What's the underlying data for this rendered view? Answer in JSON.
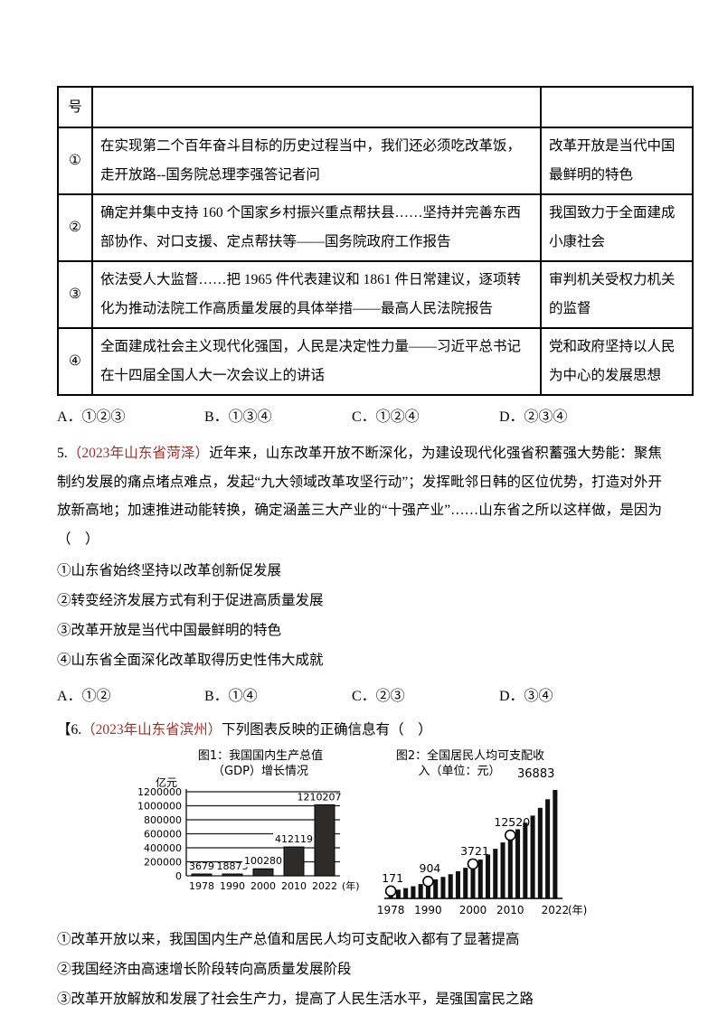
{
  "colors": {
    "source_red": "#97322d",
    "bar_dark": "#2e2c2a",
    "bar_black": "#111111"
  },
  "table": {
    "header_col1": "号",
    "rows": [
      {
        "num": "①",
        "content": "在实现第二个百年奋斗目标的历史过程当中，我们还必须吃改革饭，走开放路--国务院总理李强答记者问",
        "meaning": "改革开放是当代中国最鲜明的特色"
      },
      {
        "num": "②",
        "content": "确定并集中支持 160 个国家乡村振兴重点帮扶县……坚持并完善东西部协作、对口支援、定点帮扶等——国务院政府工作报告",
        "meaning": "我国致力于全面建成小康社会"
      },
      {
        "num": "③",
        "content": "依法受人大监督……把 1965 件代表建议和 1861 件日常建议，逐项转化为推动法院工作高质量发展的具体举措——最高人民法院报告",
        "meaning": "审判机关受权力机关的监督"
      },
      {
        "num": "④",
        "content": "全面建成社会主义现代化强国，人民是决定性力量——习近平总书记在十四届全国人大一次会议上的讲话",
        "meaning": "党和政府坚持以人民为中心的发展思想"
      }
    ]
  },
  "q4": {
    "options": [
      "A．①②③",
      "B．①③④",
      "C．①②④",
      "D．②③④"
    ]
  },
  "q5": {
    "number": "5.",
    "source": "（2023年山东省菏泽）",
    "text": "近年来，山东改革开放不断深化，为建设现代化强省积蓄强大势能：聚焦制约发展的痛点堵点难点，发起“九大领域改革攻坚行动”；发挥毗邻日韩的区位优势，打造对外开放新高地；加速推进动能转换，确定涵盖三大产业的“十强产业”……山东省之所以这样做，是因为（　）",
    "items": [
      "①山东省始终坚持以改革创新促发展",
      "②转变经济发展方式有利于促进高质量发展",
      "③改革开放是当代中国最鲜明的特色",
      "④山东省全面深化改革取得历史性伟大成就"
    ],
    "options": [
      "A．①②",
      "B．①④",
      "C．②③",
      "D．③④"
    ]
  },
  "q6": {
    "prefix": "【6.",
    "source": "（2023年山东省滨州）",
    "text": "下列图表反映的正确信息有（　）",
    "statements": [
      "①改革开放以来，我国国内生产总值和居民人均可支配收入都有了显著提高",
      "②我国经济由高速增长阶段转向高质量发展阶段",
      "③改革开放解放和发展了社会生产力，提高了人民生活水平，是强国富民之路"
    ]
  },
  "chart_data": [
    {
      "type": "bar",
      "title_lines": [
        "图1：我国国内生产总值",
        "（GDP）增长情况"
      ],
      "unit_label": "亿元",
      "categories": [
        "1978",
        "1990",
        "2000",
        "2010",
        "2022"
      ],
      "values": [
        3679,
        18873,
        100280,
        412119,
        1210207
      ],
      "data_labels": [
        "3679",
        "18873",
        "100280",
        "412119",
        "1210207"
      ],
      "ylim": [
        0,
        1200000
      ],
      "yticks": [
        0,
        200000,
        400000,
        600000,
        800000,
        1000000,
        1200000
      ],
      "x_axis_suffix": "(年)",
      "grid": true,
      "legend": "none"
    },
    {
      "type": "bar",
      "subtype": "dense-staircase",
      "title_lines": [
        "图2：全国居民人均可支配收",
        "入（单位：元）"
      ],
      "categories": [
        "1978",
        "1990",
        "2000",
        "2010",
        "2022"
      ],
      "values": [
        171,
        904,
        3721,
        12520,
        36883
      ],
      "data_labels": [
        "171",
        "904",
        "3721",
        "12520",
        "36883"
      ],
      "top_label": "36883",
      "bar_count": 23,
      "x_axis_suffix": "(年)",
      "grid": false,
      "legend": "none"
    }
  ]
}
